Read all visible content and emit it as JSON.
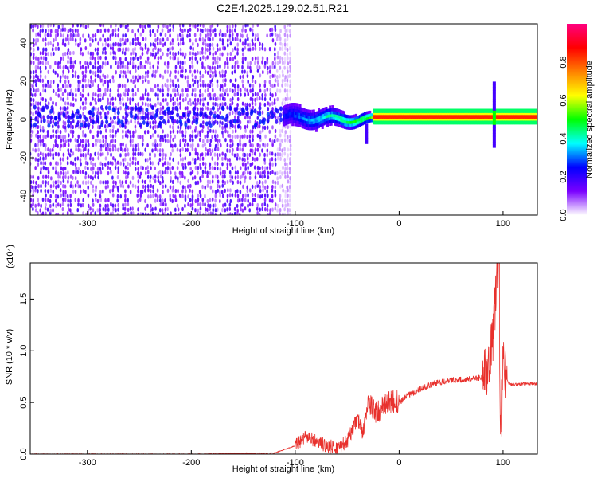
{
  "figure": {
    "title": "C2E4.2025.129.02.51.R21"
  },
  "chart_data": [
    {
      "type": "heatmap",
      "title": "C2E4.2025.129.02.51.R21",
      "xlabel": "Height of straight line (km)",
      "ylabel": "Frequency (Hz)",
      "xlim": [
        -355,
        133
      ],
      "ylim": [
        -50,
        50
      ],
      "xticks": [
        -300,
        -200,
        -100,
        0,
        100
      ],
      "yticks": [
        -40,
        -20,
        0,
        20,
        40
      ],
      "colorbar": {
        "label": "Normalized spectral amplitude",
        "range": [
          0,
          1
        ],
        "ticks": [
          0.0,
          0.2,
          0.4,
          0.6,
          0.8
        ],
        "colormap": [
          "#ffffff",
          "#7a00ff",
          "#0000ff",
          "#00ffff",
          "#00ff00",
          "#ffff00",
          "#ff8000",
          "#ff0000",
          "#ff0080"
        ]
      },
      "features": {
        "noise_region_x": [
          -355,
          -112
        ],
        "dominant_frequency_hz": 1.5,
        "max_amplitude_x": [
          -25,
          133
        ],
        "spike_x": 90
      }
    },
    {
      "type": "line",
      "xlabel": "Height of straight line (km)",
      "ylabel": "SNR (10 * v/v)",
      "ylabel_multiplier": "(x10⁴)",
      "xlim": [
        -355,
        133
      ],
      "ylim": [
        0,
        1.85
      ],
      "xticks": [
        -300,
        -200,
        -100,
        0,
        100
      ],
      "yticks": [
        0.0,
        0.5,
        1.0,
        1.5
      ],
      "series": [
        {
          "color": "#e8302c",
          "x": [
            -355,
            -300,
            -200,
            -120,
            -100,
            -90,
            -80,
            -70,
            -60,
            -50,
            -40,
            -35,
            -30,
            -20,
            -10,
            0,
            10,
            20,
            30,
            40,
            50,
            60,
            70,
            80,
            85,
            90,
            95,
            98,
            100,
            105,
            110,
            120,
            133
          ],
          "y": [
            0.0,
            0.0,
            0.0,
            0.01,
            0.08,
            0.18,
            0.12,
            0.08,
            0.06,
            0.12,
            0.35,
            0.2,
            0.48,
            0.4,
            0.5,
            0.5,
            0.58,
            0.63,
            0.67,
            0.7,
            0.72,
            0.72,
            0.73,
            0.74,
            0.8,
            1.1,
            1.85,
            0.1,
            0.9,
            0.68,
            0.67,
            0.68,
            0.68
          ]
        }
      ]
    }
  ]
}
